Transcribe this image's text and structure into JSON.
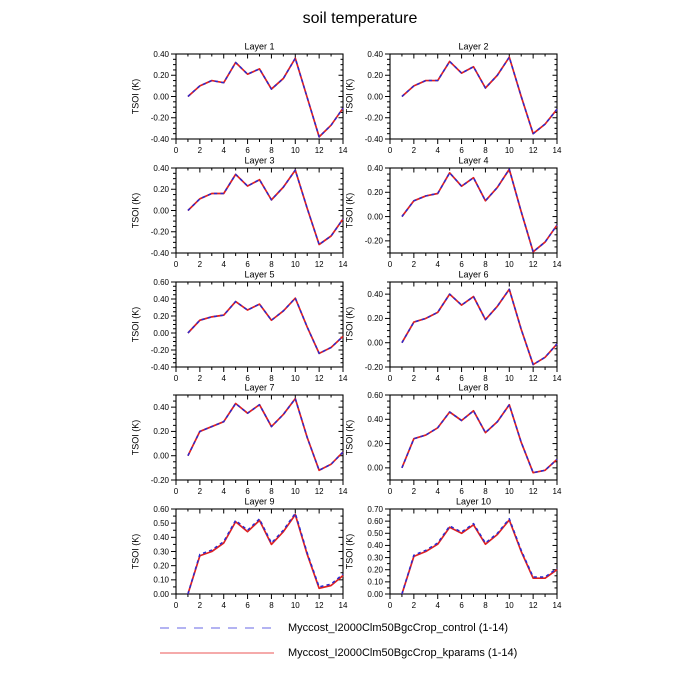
{
  "title": "soil temperature",
  "colors": {
    "control_line": "#2a2ad0",
    "kparams_line": "#e02020",
    "legend_control": "#9a9aee",
    "legend_kparams": "#f28d8d",
    "axis": "#000000"
  },
  "legend": {
    "entries": [
      {
        "name": "control",
        "label": "Myccost_I2000Clm50BgcCrop_control (1-14)",
        "style": "dashed",
        "color": "#9a9aee"
      },
      {
        "name": "kparams",
        "label": "Myccost_I2000Clm50BgcCrop_kparams (1-14)",
        "style": "solid",
        "color": "#f28d8d"
      }
    ]
  },
  "axes": {
    "ylabel": "TSOI (K)",
    "x": [
      1,
      2,
      3,
      4,
      5,
      6,
      7,
      8,
      9,
      10,
      11,
      12,
      13,
      14
    ],
    "xlim": [
      0,
      14
    ],
    "xmajor": 2,
    "xminor": 1,
    "yminor": 0.05
  },
  "chart_data": [
    {
      "type": "line",
      "title": "Layer 1",
      "ylim": [
        -0.4,
        0.4
      ],
      "ymajor": 0.2,
      "series": [
        {
          "name": "control",
          "values": [
            0.0,
            0.1,
            0.15,
            0.13,
            0.32,
            0.21,
            0.26,
            0.07,
            0.17,
            0.36,
            -0.01,
            -0.38,
            -0.27,
            -0.11
          ]
        },
        {
          "name": "kparams",
          "values": [
            0.0,
            0.1,
            0.15,
            0.13,
            0.32,
            0.21,
            0.26,
            0.07,
            0.17,
            0.36,
            -0.01,
            -0.38,
            -0.27,
            -0.11
          ]
        }
      ]
    },
    {
      "type": "line",
      "title": "Layer 2",
      "ylim": [
        -0.4,
        0.4
      ],
      "ymajor": 0.2,
      "series": [
        {
          "name": "control",
          "values": [
            0.0,
            0.1,
            0.15,
            0.15,
            0.33,
            0.22,
            0.28,
            0.08,
            0.2,
            0.37,
            0.0,
            -0.35,
            -0.26,
            -0.12
          ]
        },
        {
          "name": "kparams",
          "values": [
            0.0,
            0.1,
            0.15,
            0.15,
            0.33,
            0.22,
            0.28,
            0.08,
            0.2,
            0.37,
            0.0,
            -0.35,
            -0.26,
            -0.12
          ]
        }
      ]
    },
    {
      "type": "line",
      "title": "Layer 3",
      "ylim": [
        -0.4,
        0.4
      ],
      "ymajor": 0.2,
      "series": [
        {
          "name": "control",
          "values": [
            0.0,
            0.11,
            0.16,
            0.16,
            0.34,
            0.23,
            0.29,
            0.1,
            0.22,
            0.38,
            0.02,
            -0.32,
            -0.24,
            -0.08
          ]
        },
        {
          "name": "kparams",
          "values": [
            0.0,
            0.11,
            0.16,
            0.16,
            0.34,
            0.23,
            0.29,
            0.1,
            0.22,
            0.38,
            0.02,
            -0.32,
            -0.24,
            -0.08
          ]
        }
      ]
    },
    {
      "type": "line",
      "title": "Layer 4",
      "ylim": [
        -0.3,
        0.4
      ],
      "ymajor": 0.2,
      "series": [
        {
          "name": "control",
          "values": [
            0.0,
            0.13,
            0.17,
            0.19,
            0.36,
            0.25,
            0.32,
            0.13,
            0.24,
            0.39,
            0.04,
            -0.29,
            -0.21,
            -0.07
          ]
        },
        {
          "name": "kparams",
          "values": [
            0.0,
            0.13,
            0.17,
            0.19,
            0.36,
            0.25,
            0.32,
            0.13,
            0.24,
            0.39,
            0.04,
            -0.29,
            -0.21,
            -0.07
          ]
        }
      ]
    },
    {
      "type": "line",
      "title": "Layer 5",
      "ylim": [
        -0.4,
        0.6
      ],
      "ymajor": 0.2,
      "series": [
        {
          "name": "control",
          "values": [
            0.0,
            0.15,
            0.19,
            0.21,
            0.37,
            0.27,
            0.34,
            0.15,
            0.26,
            0.41,
            0.07,
            -0.24,
            -0.17,
            -0.04
          ]
        },
        {
          "name": "kparams",
          "values": [
            0.0,
            0.15,
            0.19,
            0.21,
            0.37,
            0.27,
            0.34,
            0.15,
            0.26,
            0.41,
            0.07,
            -0.24,
            -0.17,
            -0.04
          ]
        }
      ]
    },
    {
      "type": "line",
      "title": "Layer 6",
      "ylim": [
        -0.2,
        0.5
      ],
      "ymajor": 0.2,
      "series": [
        {
          "name": "control",
          "values": [
            0.0,
            0.17,
            0.2,
            0.25,
            0.4,
            0.31,
            0.38,
            0.19,
            0.3,
            0.44,
            0.11,
            -0.18,
            -0.12,
            -0.01
          ]
        },
        {
          "name": "kparams",
          "values": [
            0.0,
            0.17,
            0.2,
            0.25,
            0.4,
            0.31,
            0.38,
            0.19,
            0.3,
            0.44,
            0.11,
            -0.18,
            -0.12,
            -0.01
          ]
        }
      ]
    },
    {
      "type": "line",
      "title": "Layer 7",
      "ylim": [
        -0.2,
        0.5
      ],
      "ymajor": 0.2,
      "series": [
        {
          "name": "control",
          "values": [
            0.0,
            0.2,
            0.24,
            0.28,
            0.43,
            0.35,
            0.42,
            0.24,
            0.34,
            0.47,
            0.15,
            -0.12,
            -0.07,
            0.03
          ]
        },
        {
          "name": "kparams",
          "values": [
            0.0,
            0.2,
            0.24,
            0.28,
            0.43,
            0.35,
            0.42,
            0.24,
            0.34,
            0.47,
            0.15,
            -0.12,
            -0.07,
            0.03
          ]
        }
      ]
    },
    {
      "type": "line",
      "title": "Layer 8",
      "ylim": [
        -0.1,
        0.6
      ],
      "ymajor": 0.2,
      "series": [
        {
          "name": "control",
          "values": [
            0.0,
            0.24,
            0.27,
            0.33,
            0.46,
            0.39,
            0.47,
            0.29,
            0.38,
            0.52,
            0.21,
            -0.04,
            -0.02,
            0.07
          ]
        },
        {
          "name": "kparams",
          "values": [
            0.0,
            0.24,
            0.27,
            0.33,
            0.46,
            0.39,
            0.47,
            0.29,
            0.38,
            0.52,
            0.21,
            -0.04,
            -0.02,
            0.07
          ]
        }
      ]
    },
    {
      "type": "line",
      "title": "Layer 9",
      "ylim": [
        0.0,
        0.6
      ],
      "ymajor": 0.1,
      "series": [
        {
          "name": "control",
          "values": [
            0.0,
            0.28,
            0.31,
            0.37,
            0.52,
            0.45,
            0.53,
            0.36,
            0.45,
            0.57,
            0.29,
            0.05,
            0.07,
            0.14
          ]
        },
        {
          "name": "kparams",
          "values": [
            0.0,
            0.27,
            0.3,
            0.36,
            0.51,
            0.44,
            0.52,
            0.35,
            0.44,
            0.56,
            0.28,
            0.04,
            0.06,
            0.13
          ]
        }
      ]
    },
    {
      "type": "line",
      "title": "Layer 10",
      "ylim": [
        0.0,
        0.7
      ],
      "ymajor": 0.1,
      "series": [
        {
          "name": "control",
          "values": [
            0.0,
            0.32,
            0.36,
            0.42,
            0.56,
            0.51,
            0.58,
            0.42,
            0.5,
            0.62,
            0.36,
            0.14,
            0.14,
            0.21
          ]
        },
        {
          "name": "kparams",
          "values": [
            0.0,
            0.31,
            0.35,
            0.41,
            0.55,
            0.5,
            0.57,
            0.41,
            0.49,
            0.61,
            0.35,
            0.13,
            0.13,
            0.2
          ]
        }
      ]
    }
  ]
}
